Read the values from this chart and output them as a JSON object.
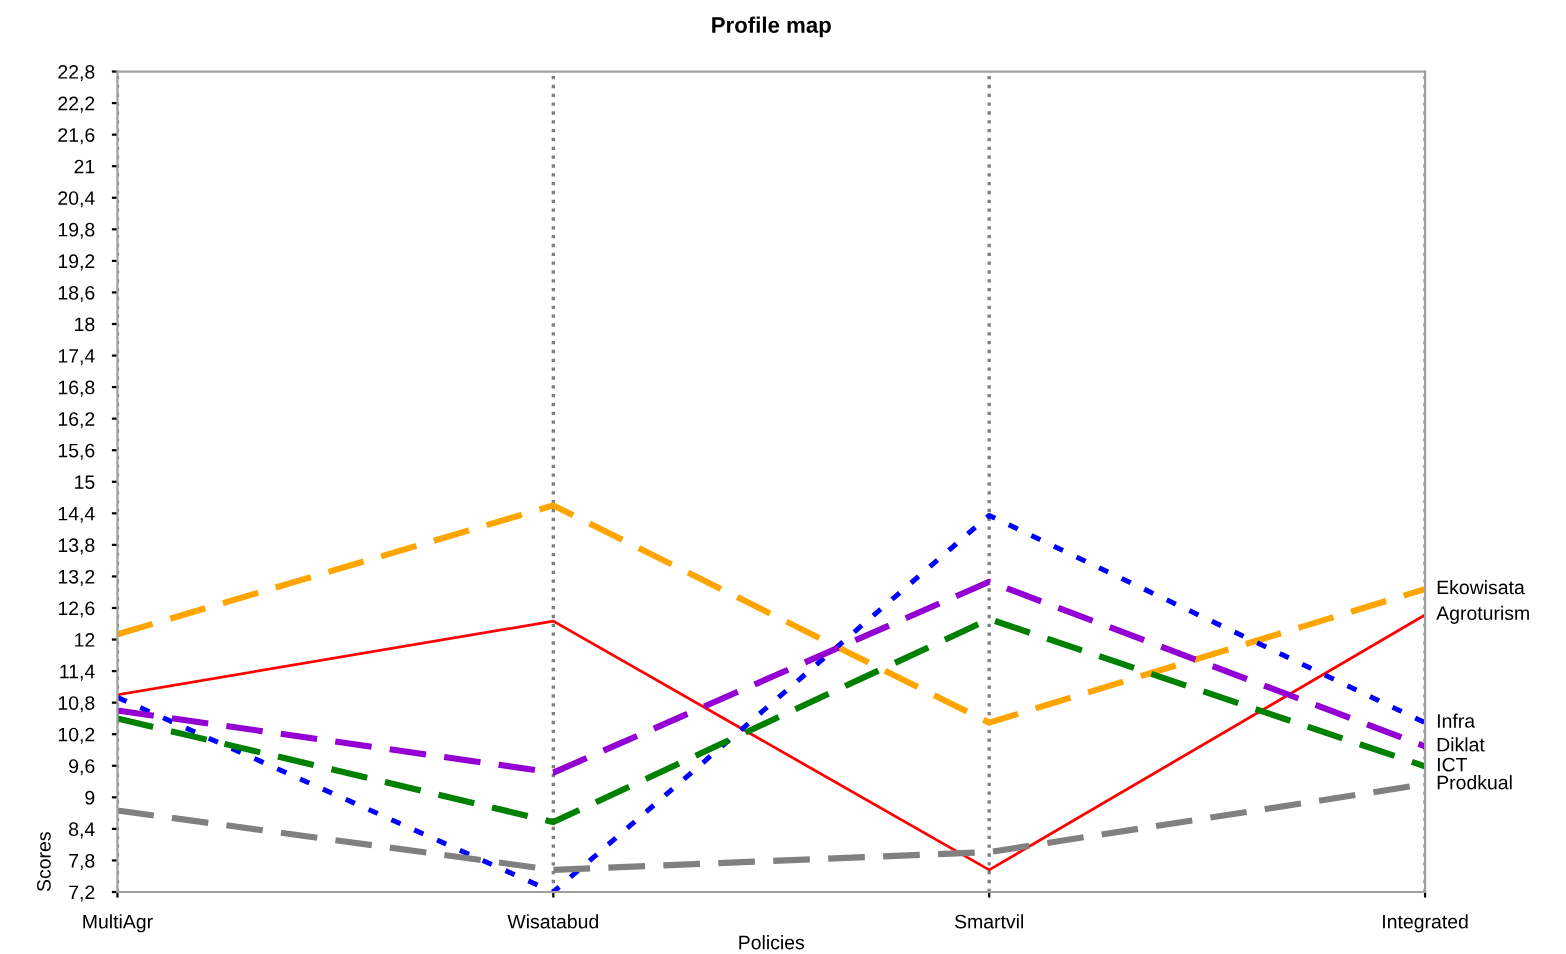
{
  "chart_data": {
    "type": "line",
    "title": "Profile map",
    "xlabel": "Policies",
    "ylabel": "Scores",
    "categories": [
      "MultiAgr",
      "Wisatabud",
      "Smartvil",
      "Integrated"
    ],
    "series": [
      {
        "name": "Ekowisata",
        "color": "#ffa500",
        "line_style": "dashed",
        "values": [
          12.1,
          14.55,
          10.42,
          12.96
        ]
      },
      {
        "name": "Agroturism",
        "color": "#ff0000",
        "line_style": "solid",
        "values": [
          10.95,
          12.35,
          7.62,
          12.47
        ]
      },
      {
        "name": "Infra",
        "color": "#0000ff",
        "line_style": "dotted",
        "values": [
          10.9,
          7.2,
          14.36,
          10.42
        ]
      },
      {
        "name": "Diklat",
        "color": "#9400d3",
        "line_style": "dashed",
        "values": [
          10.65,
          9.47,
          13.1,
          9.97
        ]
      },
      {
        "name": "ICT",
        "color": "#008000",
        "line_style": "dashed",
        "values": [
          10.5,
          8.53,
          12.39,
          9.59
        ]
      },
      {
        "name": "Prodkual",
        "color": "#808080",
        "line_style": "dashed",
        "values": [
          8.75,
          7.62,
          7.96,
          9.25
        ]
      }
    ],
    "ylim": [
      7.2,
      22.8
    ],
    "yticks": [
      {
        "value": 7.2,
        "label": "7,2"
      },
      {
        "value": 7.8,
        "label": "7,8"
      },
      {
        "value": 8.4,
        "label": "8,4"
      },
      {
        "value": 9,
        "label": "9"
      },
      {
        "value": 9.6,
        "label": "9,6"
      },
      {
        "value": 10.2,
        "label": "10,2"
      },
      {
        "value": 10.8,
        "label": "10,8"
      },
      {
        "value": 11.4,
        "label": "11,4"
      },
      {
        "value": 12,
        "label": "12"
      },
      {
        "value": 12.6,
        "label": "12,6"
      },
      {
        "value": 13.2,
        "label": "13,2"
      },
      {
        "value": 13.8,
        "label": "13,8"
      },
      {
        "value": 14.4,
        "label": "14,4"
      },
      {
        "value": 15,
        "label": "15"
      },
      {
        "value": 15.6,
        "label": "15,6"
      },
      {
        "value": 16.2,
        "label": "16,2"
      },
      {
        "value": 16.8,
        "label": "16,8"
      },
      {
        "value": 17.4,
        "label": "17,4"
      },
      {
        "value": 18,
        "label": "18"
      },
      {
        "value": 18.6,
        "label": "18,6"
      },
      {
        "value": 19.2,
        "label": "19,2"
      },
      {
        "value": 19.8,
        "label": "19,8"
      },
      {
        "value": 20.4,
        "label": "20,4"
      },
      {
        "value": 21,
        "label": "21"
      },
      {
        "value": 21.6,
        "label": "21,6"
      },
      {
        "value": 22.2,
        "label": "22,2"
      },
      {
        "value": 22.8,
        "label": "22,8"
      }
    ],
    "grid": "x",
    "legend": false
  }
}
